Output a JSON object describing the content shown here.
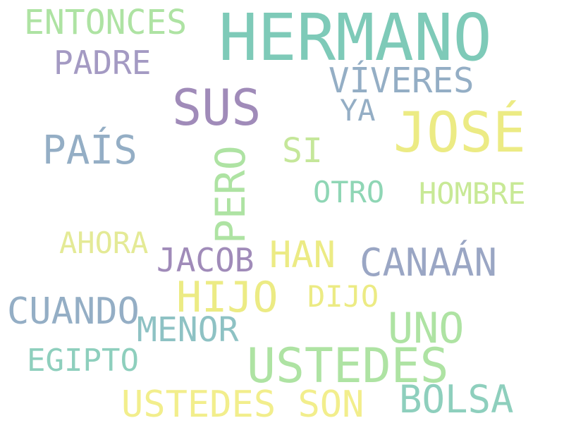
{
  "words": [
    {
      "text": "HERMANO",
      "color": "#7ecab8"
    },
    {
      "text": "ENTONCES",
      "color": "#aee3a3"
    },
    {
      "text": "PADRE",
      "color": "#a49ac3"
    },
    {
      "text": "VÍVERES",
      "color": "#94aec5"
    },
    {
      "text": "SUS",
      "color": "#a08bb9"
    },
    {
      "text": "YA",
      "color": "#94aec5"
    },
    {
      "text": "JOSÉ",
      "color": "#eceb84"
    },
    {
      "text": "PAÍS",
      "color": "#94aec5"
    },
    {
      "text": "PERO",
      "color": "#aee3a3"
    },
    {
      "text": "SI",
      "color": "#c5e79a"
    },
    {
      "text": "OTRO",
      "color": "#8fd6b5"
    },
    {
      "text": "HOMBRE",
      "color": "#c8e996"
    },
    {
      "text": "AHORA",
      "color": "#e4ea96"
    },
    {
      "text": "JACOB",
      "color": "#a08bb9"
    },
    {
      "text": "HAN",
      "color": "#eceb84"
    },
    {
      "text": "CANAÁN",
      "color": "#9aa6c4"
    },
    {
      "text": "HIJO",
      "color": "#eceb84"
    },
    {
      "text": "DIJO",
      "color": "#eceb84"
    },
    {
      "text": "CUANDO",
      "color": "#94aec5"
    },
    {
      "text": "MENOR",
      "color": "#8ec2c4"
    },
    {
      "text": "UNO",
      "color": "#aee3a3"
    },
    {
      "text": "USTEDES",
      "color": "#aee3a3"
    },
    {
      "text": "EGIPTO",
      "color": "#8ecfbd"
    },
    {
      "text": "USTEDES SON",
      "color": "#f2ee8c"
    },
    {
      "text": "BOLSA",
      "color": "#8ecfbd"
    }
  ]
}
